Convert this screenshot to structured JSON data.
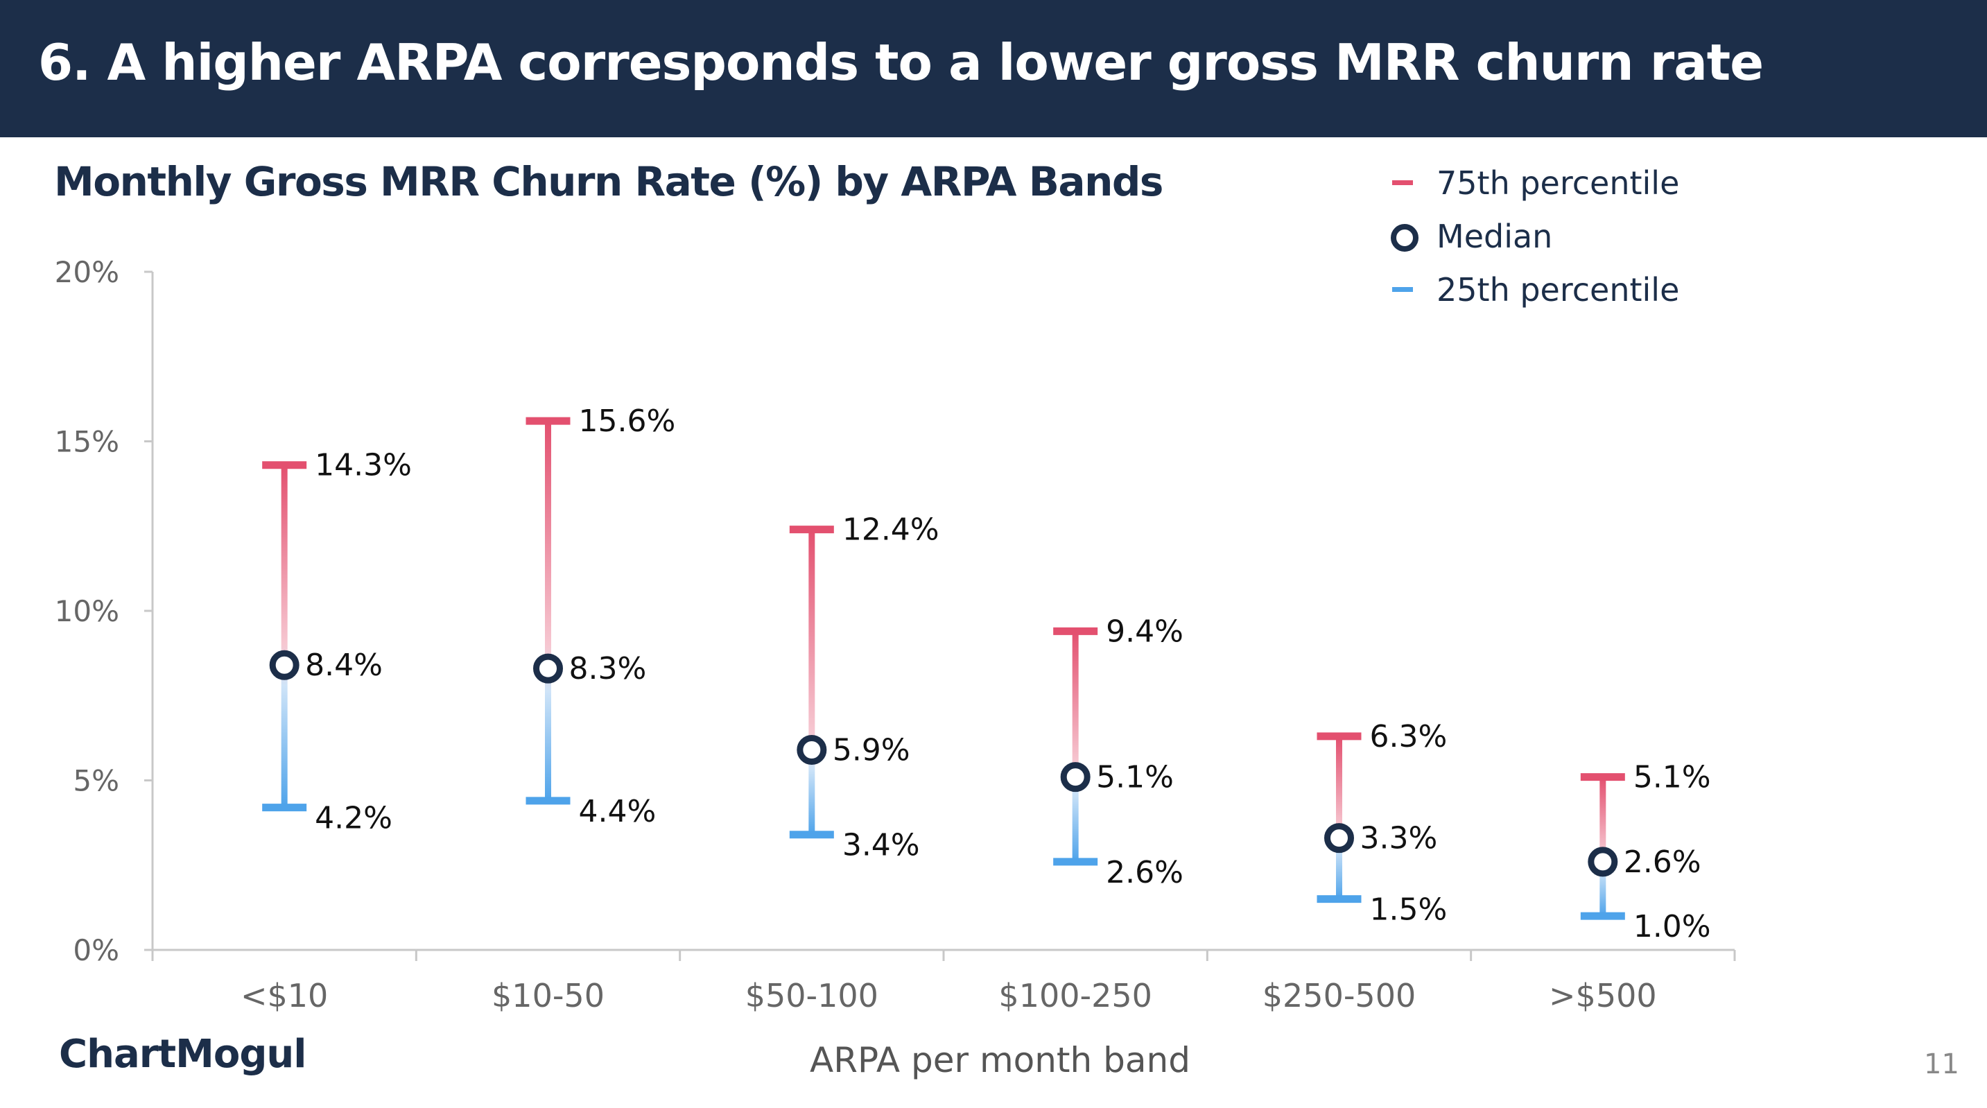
{
  "header": {
    "title": "6. A higher ARPA corresponds to a lower gross MRR churn rate"
  },
  "legend": {
    "p75_label": "75th percentile",
    "median_label": "Median",
    "p25_label": "25th percentile"
  },
  "footer": {
    "logo_text": "ChartMogul",
    "page_number": "11"
  },
  "colors": {
    "header_bg": "#1c2e49",
    "navy": "#1c2e49",
    "p75": "#e3506f",
    "p25": "#4ea3ea",
    "axis": "#c8c8c8"
  },
  "chart_data": {
    "type": "range",
    "title": "Monthly Gross MRR Churn Rate (%) by ARPA Bands",
    "xlabel": "ARPA per month band",
    "ylabel": "",
    "ylim": [
      0,
      20
    ],
    "yticks": [
      0,
      5,
      10,
      15,
      20
    ],
    "ytick_labels": [
      "0%",
      "5%",
      "10%",
      "15%",
      "20%"
    ],
    "categories": [
      "<$10",
      "$10-50",
      "$50-100",
      "$100-250",
      "$250-500",
      ">$500"
    ],
    "series": [
      {
        "name": "75th percentile",
        "values": [
          14.3,
          15.6,
          12.4,
          9.4,
          6.3,
          5.1
        ],
        "labels": [
          "14.3%",
          "15.6%",
          "12.4%",
          "9.4%",
          "6.3%",
          "5.1%"
        ]
      },
      {
        "name": "Median",
        "values": [
          8.4,
          8.3,
          5.9,
          5.1,
          3.3,
          2.6
        ],
        "labels": [
          "8.4%",
          "8.3%",
          "5.9%",
          "5.1%",
          "3.3%",
          "2.6%"
        ]
      },
      {
        "name": "25th percentile",
        "values": [
          4.2,
          4.4,
          3.4,
          2.6,
          1.5,
          1.0
        ],
        "labels": [
          "4.2%",
          "4.4%",
          "3.4%",
          "2.6%",
          "1.5%",
          "1.0%"
        ]
      }
    ],
    "legend_position": "top-right",
    "grid": false
  }
}
